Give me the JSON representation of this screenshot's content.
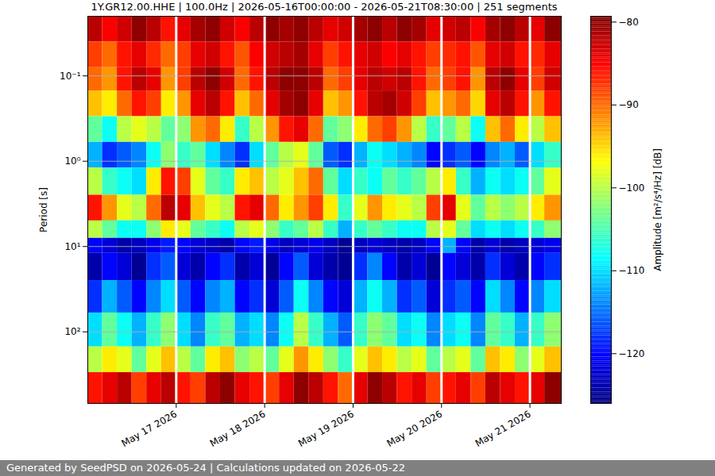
{
  "chart_data": {
    "type": "heatmap",
    "title": "1Y.GR12.00.HHE | 100.0Hz | 2026-05-16T00:00:00 - 2026-05-21T08:30:00 | 251 segments",
    "footer": "Generated by SeedPSD on 2026-05-24 | Calculations updated on 2026-05-22",
    "y_label": "Period [s]",
    "log": "y",
    "grid": true,
    "xlim": [
      "2026-05-16T00:00:00",
      "2026-05-21T08:30:00"
    ],
    "xticks": [
      {
        "value": "2026-05-17T00:00:00",
        "label": "May 17 2026"
      },
      {
        "value": "2026-05-18T00:00:00",
        "label": "May 18 2026"
      },
      {
        "value": "2026-05-19T00:00:00",
        "label": "May 19 2026"
      },
      {
        "value": "2026-05-20T00:00:00",
        "label": "May 20 2026"
      },
      {
        "value": "2026-05-21T00:00:00",
        "label": "May 21 2026"
      }
    ],
    "ylim": [
      0.02,
      690
    ],
    "yticks": [
      {
        "value": 0.1,
        "label": "10⁻¹"
      },
      {
        "value": 1,
        "label": "10⁰"
      },
      {
        "value": 10,
        "label": "10¹"
      },
      {
        "value": 100,
        "label": "10²"
      }
    ],
    "x": [
      "2026-05-16T00:00:00",
      "2026-05-16T04:00:00",
      "2026-05-16T08:00:00",
      "2026-05-16T12:00:00",
      "2026-05-16T16:00:00",
      "2026-05-16T20:00:00",
      "2026-05-17T00:00:00",
      "2026-05-17T04:00:00",
      "2026-05-17T08:00:00",
      "2026-05-17T12:00:00",
      "2026-05-17T16:00:00",
      "2026-05-17T20:00:00",
      "2026-05-18T00:00:00",
      "2026-05-18T04:00:00",
      "2026-05-18T08:00:00",
      "2026-05-18T12:00:00",
      "2026-05-18T16:00:00",
      "2026-05-18T20:00:00",
      "2026-05-19T00:00:00",
      "2026-05-19T04:00:00",
      "2026-05-19T08:00:00",
      "2026-05-19T12:00:00",
      "2026-05-19T16:00:00",
      "2026-05-19T20:00:00",
      "2026-05-20T00:00:00",
      "2026-05-20T04:00:00",
      "2026-05-20T08:00:00",
      "2026-05-20T12:00:00",
      "2026-05-20T16:00:00",
      "2026-05-20T20:00:00",
      "2026-05-21T00:00:00",
      "2026-05-21T04:00:00"
    ],
    "period_edges": [
      0.02,
      0.04,
      0.08,
      0.15,
      0.3,
      0.6,
      1.2,
      2.5,
      5,
      8,
      12,
      25,
      60,
      150,
      300,
      690
    ],
    "values": [
      [
        -82,
        -85,
        -83,
        -80,
        -82,
        -86,
        -84,
        -81,
        -80,
        -83,
        -85,
        -82,
        -80,
        -81,
        -80,
        -82,
        -84,
        -83,
        -81,
        -80,
        -82,
        -80,
        -81,
        -84,
        -83,
        -82,
        -85,
        -81,
        -80,
        -82,
        -84,
        -80
      ],
      [
        -88,
        -90,
        -86,
        -84,
        -87,
        -90,
        -88,
        -84,
        -83,
        -86,
        -89,
        -85,
        -83,
        -82,
        -81,
        -84,
        -88,
        -86,
        -84,
        -83,
        -85,
        -84,
        -86,
        -88,
        -87,
        -86,
        -89,
        -84,
        -83,
        -86,
        -87,
        -84
      ],
      [
        -90,
        -92,
        -86,
        -82,
        -84,
        -92,
        -88,
        -82,
        -80,
        -83,
        -90,
        -86,
        -82,
        -80,
        -80,
        -82,
        -90,
        -88,
        -84,
        -82,
        -83,
        -82,
        -86,
        -90,
        -88,
        -86,
        -92,
        -82,
        -80,
        -84,
        -88,
        -83
      ],
      [
        -94,
        -96,
        -90,
        -86,
        -88,
        -96,
        -92,
        -84,
        -82,
        -86,
        -94,
        -90,
        -84,
        -81,
        -80,
        -84,
        -94,
        -92,
        -86,
        -82,
        -81,
        -83,
        -88,
        -94,
        -92,
        -90,
        -95,
        -84,
        -82,
        -86,
        -92,
        -86
      ],
      [
        -104,
        -108,
        -100,
        -98,
        -100,
        -104,
        -102,
        -92,
        -90,
        -96,
        -106,
        -100,
        -92,
        -86,
        -84,
        -90,
        -104,
        -102,
        -96,
        -90,
        -88,
        -92,
        -100,
        -106,
        -104,
        -100,
        -108,
        -94,
        -90,
        -96,
        -100,
        -94
      ],
      [
        -112,
        -118,
        -116,
        -114,
        -108,
        -102,
        -106,
        -104,
        -110,
        -114,
        -118,
        -110,
        -104,
        -100,
        -98,
        -104,
        -116,
        -118,
        -112,
        -108,
        -110,
        -112,
        -114,
        -120,
        -118,
        -116,
        -120,
        -114,
        -112,
        -116,
        -110,
        -106
      ],
      [
        -100,
        -106,
        -108,
        -110,
        -96,
        -86,
        -88,
        -98,
        -104,
        -106,
        -96,
        -94,
        -100,
        -98,
        -94,
        -90,
        -104,
        -110,
        -106,
        -108,
        -104,
        -106,
        -104,
        -100,
        -96,
        -106,
        -112,
        -108,
        -110,
        -108,
        -104,
        -98
      ],
      [
        -86,
        -92,
        -98,
        -100,
        -90,
        -82,
        -84,
        -94,
        -98,
        -100,
        -86,
        -84,
        -90,
        -96,
        -92,
        -88,
        -96,
        -106,
        -98,
        -92,
        -96,
        -98,
        -100,
        -88,
        -84,
        -98,
        -104,
        -100,
        -102,
        -100,
        -96,
        -92
      ],
      [
        -100,
        -104,
        -108,
        -108,
        -102,
        -96,
        -98,
        -104,
        -106,
        -108,
        -100,
        -98,
        -102,
        -106,
        -104,
        -100,
        -106,
        -112,
        -106,
        -104,
        -106,
        -108,
        -108,
        -100,
        -98,
        -104,
        -110,
        -108,
        -110,
        -108,
        -106,
        -102
      ],
      [
        -120,
        -122,
        -124,
        -123,
        -121,
        -119,
        -120,
        -122,
        -123,
        -124,
        -120,
        -119,
        -121,
        -123,
        -122,
        -121,
        -123,
        -125,
        -123,
        -122,
        -123,
        -124,
        -123,
        -120,
        -112,
        -120,
        -124,
        -122,
        -124,
        -123,
        -122,
        -121
      ],
      [
        -124,
        -120,
        -122,
        -125,
        -118,
        -116,
        -122,
        -124,
        -120,
        -118,
        -124,
        -122,
        -125,
        -120,
        -116,
        -122,
        -124,
        -125,
        -118,
        -114,
        -120,
        -124,
        -122,
        -125,
        -120,
        -122,
        -124,
        -118,
        -122,
        -124,
        -120,
        -118
      ],
      [
        -118,
        -112,
        -116,
        -120,
        -114,
        -110,
        -116,
        -120,
        -114,
        -112,
        -120,
        -118,
        -122,
        -116,
        -108,
        -114,
        -120,
        -122,
        -112,
        -108,
        -112,
        -118,
        -116,
        -122,
        -118,
        -116,
        -120,
        -110,
        -114,
        -120,
        -114,
        -110
      ],
      [
        -110,
        -104,
        -108,
        -112,
        -106,
        -102,
        -110,
        -114,
        -106,
        -104,
        -112,
        -110,
        -114,
        -108,
        -100,
        -106,
        -112,
        -116,
        -106,
        -102,
        -104,
        -110,
        -108,
        -114,
        -110,
        -108,
        -114,
        -104,
        -106,
        -112,
        -106,
        -102
      ],
      [
        -100,
        -96,
        -98,
        -104,
        -98,
        -94,
        -100,
        -104,
        -96,
        -94,
        -102,
        -100,
        -104,
        -98,
        -92,
        -96,
        -102,
        -106,
        -98,
        -94,
        -96,
        -100,
        -98,
        -104,
        -100,
        -98,
        -104,
        -94,
        -96,
        -102,
        -98,
        -94
      ],
      [
        -86,
        -84,
        -82,
        -88,
        -84,
        -82,
        -86,
        -88,
        -82,
        -80,
        -84,
        -86,
        -88,
        -84,
        -80,
        -82,
        -86,
        -90,
        -84,
        -80,
        -82,
        -86,
        -84,
        -88,
        -86,
        -84,
        -88,
        -82,
        -84,
        -86,
        -84,
        -80
      ]
    ],
    "colorbar": {
      "label": "Amplitude [m²/s⁴/Hz] [dB]",
      "range": [
        -126,
        -79.3
      ],
      "ticks": [
        -120,
        -110,
        -100,
        -90,
        -80
      ]
    }
  }
}
